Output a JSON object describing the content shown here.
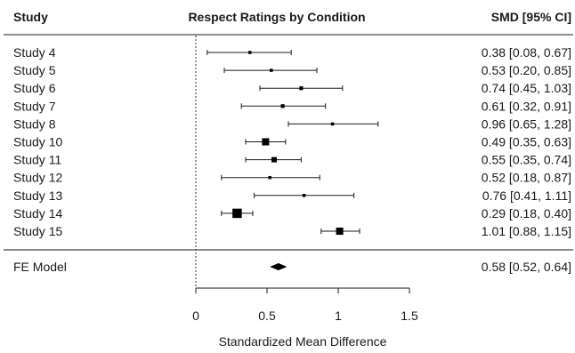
{
  "chart_data": {
    "type": "forest",
    "title": "Respect Ratings by Condition",
    "column_headers": {
      "left": "Study",
      "right": "SMD [95% CI]"
    },
    "xlabel": "Standardized Mean Difference",
    "xlim": [
      0,
      1.5
    ],
    "xticks": [
      0,
      0.5,
      1,
      1.5
    ],
    "xtick_labels": [
      "0",
      "0.5",
      "1",
      "1.5"
    ],
    "reference_line": 0,
    "studies": [
      {
        "label": "Study 4",
        "estimate": 0.38,
        "lower": 0.08,
        "upper": 0.67,
        "ci_text": "0.38 [0.08, 0.67]",
        "weight": 1.0
      },
      {
        "label": "Study 5",
        "estimate": 0.53,
        "lower": 0.2,
        "upper": 0.85,
        "ci_text": "0.53 [0.20, 0.85]",
        "weight": 1.0
      },
      {
        "label": "Study 6",
        "estimate": 0.74,
        "lower": 0.45,
        "upper": 1.03,
        "ci_text": "0.74 [0.45, 1.03]",
        "weight": 1.2
      },
      {
        "label": "Study 7",
        "estimate": 0.61,
        "lower": 0.32,
        "upper": 0.91,
        "ci_text": "0.61 [0.32, 0.91]",
        "weight": 1.2
      },
      {
        "label": "Study 8",
        "estimate": 0.96,
        "lower": 0.65,
        "upper": 1.28,
        "ci_text": "0.96 [0.65, 1.28]",
        "weight": 1.0
      },
      {
        "label": "Study 10",
        "estimate": 0.49,
        "lower": 0.35,
        "upper": 0.63,
        "ci_text": "0.49 [0.35, 0.63]",
        "weight": 2.3
      },
      {
        "label": "Study 11",
        "estimate": 0.55,
        "lower": 0.35,
        "upper": 0.74,
        "ci_text": "0.55 [0.35, 0.74]",
        "weight": 1.7
      },
      {
        "label": "Study 12",
        "estimate": 0.52,
        "lower": 0.18,
        "upper": 0.87,
        "ci_text": "0.52 [0.18, 0.87]",
        "weight": 1.0
      },
      {
        "label": "Study 13",
        "estimate": 0.76,
        "lower": 0.41,
        "upper": 1.11,
        "ci_text": "0.76 [0.41, 1.11]",
        "weight": 1.0
      },
      {
        "label": "Study 14",
        "estimate": 0.29,
        "lower": 0.18,
        "upper": 0.4,
        "ci_text": "0.29 [0.18, 0.40]",
        "weight": 3.0
      },
      {
        "label": "Study 15",
        "estimate": 1.01,
        "lower": 0.88,
        "upper": 1.15,
        "ci_text": "1.01 [0.88, 1.15]",
        "weight": 2.3
      }
    ],
    "summary": {
      "label": "FE Model",
      "estimate": 0.58,
      "lower": 0.52,
      "upper": 0.64,
      "ci_text": "0.58 [0.52, 0.64]"
    },
    "colors": {
      "ink": "#1a1a1a",
      "marker": "#000000"
    }
  }
}
